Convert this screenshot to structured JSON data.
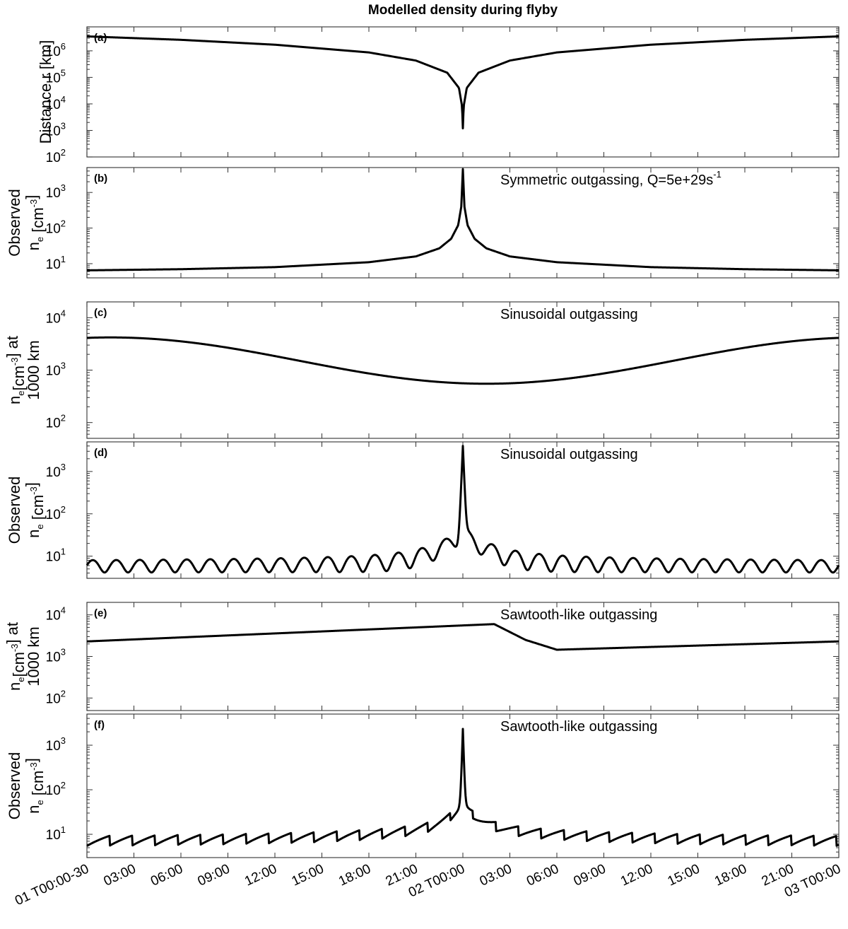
{
  "figure": {
    "title": "Modelled density during flyby",
    "x_tick_labels": [
      "01 T00:00-30",
      "03:00",
      "06:00",
      "09:00",
      "12:00",
      "15:00",
      "18:00",
      "21:00",
      "02 T00:00",
      "03:00",
      "06:00",
      "09:00",
      "12:00",
      "15:00",
      "18:00",
      "21:00",
      "03 T00:00"
    ]
  },
  "chart_data": [
    {
      "type": "line",
      "panel": "(a)",
      "ylabel": "Distance r [km]",
      "y_scale": "log",
      "ylim": [
        100,
        8000000
      ],
      "y_ticks": [
        {
          "base": "10",
          "exp": "2",
          "value": 100
        },
        {
          "base": "10",
          "exp": "3",
          "value": 1000
        },
        {
          "base": "10",
          "exp": "4",
          "value": 10000
        },
        {
          "base": "10",
          "exp": "5",
          "value": 100000
        },
        {
          "base": "10",
          "exp": "6",
          "value": 1000000
        }
      ],
      "annotation": "",
      "x_hours": [
        -24,
        -18,
        -12,
        -6,
        -3,
        -1,
        -0.25,
        -0.05,
        0,
        0.05,
        0.25,
        1,
        3,
        6,
        12,
        18,
        24
      ],
      "values": [
        3500000,
        2600000,
        1700000,
        870000,
        430000,
        150000,
        40000,
        8000,
        1200,
        8000,
        40000,
        150000,
        430000,
        870000,
        1700000,
        2600000,
        3500000
      ]
    },
    {
      "type": "line",
      "panel": "(b)",
      "ylabel": [
        "Observed",
        "n_e [cm^-3]"
      ],
      "y_scale": "log",
      "ylim": [
        4,
        5000
      ],
      "y_ticks": [
        {
          "base": "10",
          "exp": "1",
          "value": 10
        },
        {
          "base": "10",
          "exp": "2",
          "value": 100
        },
        {
          "base": "10",
          "exp": "3",
          "value": 1000
        }
      ],
      "annotation": "Symmetric outgassing, Q=5e+29s",
      "annotation_sup": "-1",
      "x_hours": [
        -24,
        -18,
        -12,
        -6,
        -3,
        -1.5,
        -0.75,
        -0.3,
        -0.1,
        0,
        0.1,
        0.3,
        0.75,
        1.5,
        3,
        6,
        12,
        18,
        24
      ],
      "values": [
        6.5,
        7,
        8,
        11,
        16,
        27,
        50,
        120,
        400,
        4500,
        400,
        120,
        50,
        27,
        16,
        11,
        8,
        7,
        6.5
      ]
    },
    {
      "type": "line",
      "panel": "(c)",
      "ylabel": [
        "n_e[cm^-3] at",
        "1000 km"
      ],
      "y_scale": "log",
      "ylim": [
        50,
        20000
      ],
      "y_ticks": [
        {
          "base": "10",
          "exp": "2",
          "value": 100
        },
        {
          "base": "10",
          "exp": "3",
          "value": 1000
        },
        {
          "base": "10",
          "exp": "4",
          "value": 10000
        }
      ],
      "annotation": "Sinusoidal outgassing",
      "model": {
        "kind": "sinusoidal",
        "center_hour": 1.5,
        "period_hours": 48,
        "min": 550,
        "max": 4200
      }
    },
    {
      "type": "line",
      "panel": "(d)",
      "ylabel": [
        "Observed",
        "n_e [cm^-3]"
      ],
      "y_scale": "log",
      "ylim": [
        3,
        5000
      ],
      "y_ticks": [
        {
          "base": "10",
          "exp": "1",
          "value": 10
        },
        {
          "base": "10",
          "exp": "2",
          "value": 100
        },
        {
          "base": "10",
          "exp": "3",
          "value": 1000
        }
      ],
      "annotation": "Sinusoidal outgassing",
      "model": {
        "kind": "oscillating_peak",
        "peak": 4000,
        "baseline": 5.5,
        "oscillation_amplitude": 0.3
      }
    },
    {
      "type": "line",
      "panel": "(e)",
      "ylabel": [
        "n_e[cm^-3] at",
        "1000 km"
      ],
      "y_scale": "log",
      "ylim": [
        50,
        20000
      ],
      "y_ticks": [
        {
          "base": "10",
          "exp": "2",
          "value": 100
        },
        {
          "base": "10",
          "exp": "3",
          "value": 1000
        },
        {
          "base": "10",
          "exp": "4",
          "value": 10000
        }
      ],
      "annotation": "Sawtooth-like outgassing",
      "x_hours": [
        -24,
        2,
        4,
        6,
        24
      ],
      "values": [
        2300,
        6000,
        2500,
        1450,
        2300
      ]
    },
    {
      "type": "line",
      "panel": "(f)",
      "ylabel": [
        "Observed",
        "n_e [cm^-3]"
      ],
      "y_scale": "log",
      "ylim": [
        3,
        5000
      ],
      "y_ticks": [
        {
          "base": "10",
          "exp": "1",
          "value": 10
        },
        {
          "base": "10",
          "exp": "2",
          "value": 100
        },
        {
          "base": "10",
          "exp": "3",
          "value": 1000
        }
      ],
      "annotation": "Sawtooth-like outgassing",
      "model": {
        "kind": "sawtooth_peak",
        "peak": 2300,
        "baseline": 5.5
      }
    }
  ]
}
